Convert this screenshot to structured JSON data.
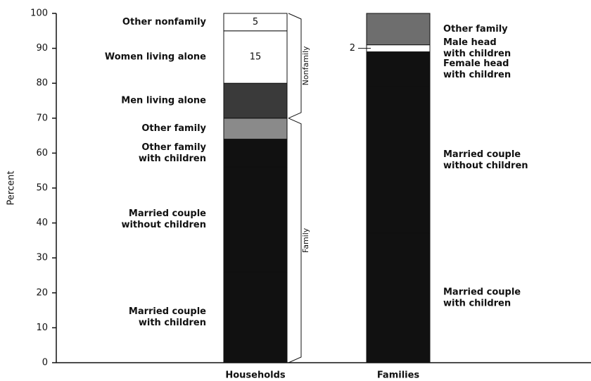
{
  "chart_data": {
    "type": "stacked_bar",
    "y_axis_label": "Percent",
    "ylim": [
      0,
      100
    ],
    "yticks": [
      0,
      10,
      20,
      30,
      40,
      50,
      60,
      70,
      80,
      90,
      100
    ],
    "bars": [
      {
        "name": "Households",
        "segments": [
          {
            "label": [
              "Married couple",
              "with children"
            ],
            "value": 26,
            "color": "#111111"
          },
          {
            "label": [
              "Married couple",
              "without children"
            ],
            "value": 30,
            "color": "#111111"
          },
          {
            "label": [
              "Other family",
              "with children"
            ],
            "value": 8,
            "color": "#111111"
          },
          {
            "label": [
              "Other family"
            ],
            "value": 6,
            "color": "#8a8a8a"
          },
          {
            "label": [
              "Men living alone"
            ],
            "value": 10,
            "color": "#3a3a3a"
          },
          {
            "label": [
              "Women living alone"
            ],
            "value": 15,
            "color": "#ffffff",
            "value_label": "15"
          },
          {
            "label": [
              "Other nonfamily"
            ],
            "value": 5,
            "color": "#ffffff",
            "value_label": "5"
          }
        ],
        "brackets": [
          {
            "label": "Family",
            "from": 0,
            "to": 70
          },
          {
            "label": "Nonfamily",
            "from": 70,
            "to": 100
          }
        ]
      },
      {
        "name": "Families",
        "segments": [
          {
            "label": [
              "Married couple",
              "with children"
            ],
            "value": 37,
            "color": "#111111"
          },
          {
            "label": [
              "Married couple",
              "without children"
            ],
            "value": 42,
            "color": "#111111"
          },
          {
            "label": [
              "Female head",
              "with children"
            ],
            "value": 10,
            "color": "#111111"
          },
          {
            "label": [
              "Male head",
              "with children"
            ],
            "value": 2,
            "color": "#ffffff",
            "value_label": "2"
          },
          {
            "label": [
              "Other family"
            ],
            "value": 9,
            "color": "#6e6e6e"
          }
        ]
      }
    ]
  }
}
